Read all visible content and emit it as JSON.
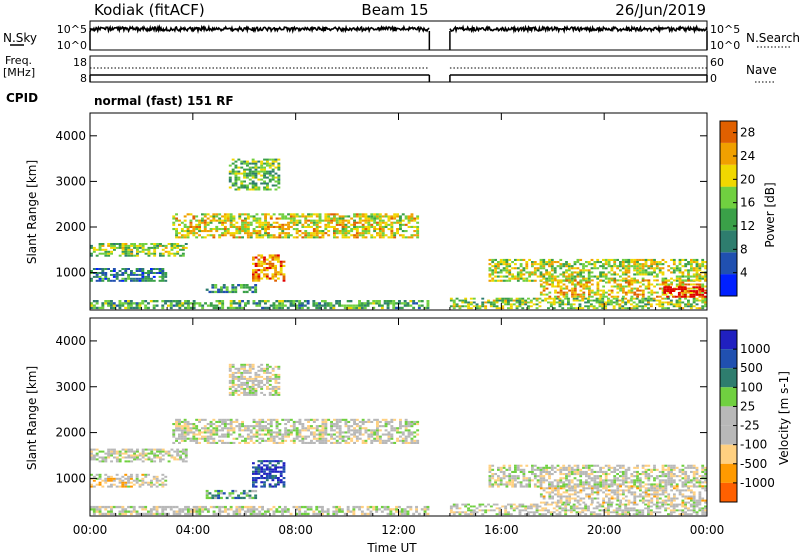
{
  "header": {
    "station": "Kodiak (fitACF)",
    "beam": "Beam 15",
    "date": "26/Jun/2019"
  },
  "nsky_panel": {
    "left_label": "N.Sky",
    "left_ticks": [
      "10^5",
      "10^0"
    ],
    "right_label": "N.Search",
    "right_ticks": [
      "10^5",
      "10^0"
    ]
  },
  "freq_panel": {
    "left_label_1": "Freq.",
    "left_label_2": "[MHz]",
    "left_ticks": [
      "18",
      "8"
    ],
    "right_label": "Nave",
    "right_ticks": [
      "60",
      "0"
    ]
  },
  "cpid_panel": {
    "label": "CPID",
    "program": "normal (fast) 151 RF"
  },
  "colors": {
    "power_scale": [
      "#0020ff",
      "#2050b0",
      "#2e7d6e",
      "#3aa048",
      "#70d040",
      "#f0d800",
      "#f0a000",
      "#e06000",
      "#e00000",
      "#e00000"
    ],
    "velocity_scale": [
      "#e00000",
      "#ff6000",
      "#ff9a00",
      "#ffd080",
      "#b8b8b8",
      "#b8b8b8",
      "#70d040",
      "#2e7d6e",
      "#2050b0",
      "#2020c0"
    ],
    "gap_background": "#ffffff"
  },
  "chart_data": [
    {
      "type": "heatmap",
      "title": "",
      "xlabel": "",
      "ylabel": "Slant Range [km]",
      "xlim_hours": [
        0,
        24
      ],
      "ylim": [
        180,
        4500
      ],
      "x_ticks": [
        "00:00",
        "04:00",
        "08:00",
        "12:00",
        "16:00",
        "20:00",
        "00:00"
      ],
      "y_ticks": [
        1000,
        2000,
        3000,
        4000
      ],
      "colorbar": {
        "label": "Power [dB]",
        "ticks": [
          4,
          8,
          12,
          16,
          20,
          24,
          28
        ],
        "range": [
          0,
          30
        ]
      },
      "data_gap_hours": [
        13.2,
        14.0
      ],
      "echo_regions": [
        {
          "t_start": 0.0,
          "t_end": 13.2,
          "range_low": 200,
          "range_high": 400,
          "level": 0.35
        },
        {
          "t_start": 0.0,
          "t_end": 3.8,
          "range_low": 1350,
          "range_high": 1650,
          "level": 0.45
        },
        {
          "t_start": 0.0,
          "t_end": 3.0,
          "range_low": 800,
          "range_high": 1100,
          "level": 0.25
        },
        {
          "t_start": 3.2,
          "t_end": 12.8,
          "range_low": 1750,
          "range_high": 2300,
          "level": 0.55
        },
        {
          "t_start": 5.4,
          "t_end": 7.4,
          "range_low": 2800,
          "range_high": 3500,
          "level": 0.4
        },
        {
          "t_start": 6.3,
          "t_end": 7.6,
          "range_low": 800,
          "range_high": 1400,
          "level": 0.7
        },
        {
          "t_start": 4.5,
          "t_end": 6.5,
          "range_low": 550,
          "range_high": 750,
          "level": 0.3
        },
        {
          "t_start": 14.0,
          "t_end": 24.0,
          "range_low": 200,
          "range_high": 450,
          "level": 0.45
        },
        {
          "t_start": 15.5,
          "t_end": 24.0,
          "range_low": 800,
          "range_high": 1300,
          "level": 0.5
        },
        {
          "t_start": 17.5,
          "t_end": 24.0,
          "range_low": 450,
          "range_high": 850,
          "level": 0.6
        },
        {
          "t_start": 22.3,
          "t_end": 24.0,
          "range_low": 450,
          "range_high": 700,
          "level": 0.95
        }
      ]
    },
    {
      "type": "heatmap",
      "title": "",
      "xlabel": "Time UT",
      "ylabel": "Slant Range [km]",
      "xlim_hours": [
        0,
        24
      ],
      "ylim": [
        180,
        4500
      ],
      "x_ticks": [
        "00:00",
        "04:00",
        "08:00",
        "12:00",
        "16:00",
        "20:00",
        "00:00"
      ],
      "y_ticks": [
        1000,
        2000,
        3000,
        4000
      ],
      "colorbar": {
        "label": "Velocity [m s-1]",
        "ticks": [
          "1000",
          "500",
          "100",
          "25",
          "-25",
          "-100",
          "-500",
          "-1000"
        ]
      },
      "data_gap_hours": [
        13.2,
        14.0
      ],
      "echo_regions": [
        {
          "t_start": 0.0,
          "t_end": 13.2,
          "range_low": 200,
          "range_high": 400,
          "level": 0.5
        },
        {
          "t_start": 0.0,
          "t_end": 3.8,
          "range_low": 1350,
          "range_high": 1650,
          "level": 0.5
        },
        {
          "t_start": 0.0,
          "t_end": 3.0,
          "range_low": 800,
          "range_high": 1100,
          "level": 0.45
        },
        {
          "t_start": 3.2,
          "t_end": 12.8,
          "range_low": 1750,
          "range_high": 2300,
          "level": 0.5
        },
        {
          "t_start": 5.4,
          "t_end": 7.4,
          "range_low": 2800,
          "range_high": 3500,
          "level": 0.5
        },
        {
          "t_start": 6.3,
          "t_end": 7.6,
          "range_low": 800,
          "range_high": 1400,
          "level": 0.9
        },
        {
          "t_start": 4.5,
          "t_end": 6.5,
          "range_low": 550,
          "range_high": 750,
          "level": 0.7
        },
        {
          "t_start": 14.0,
          "t_end": 24.0,
          "range_low": 200,
          "range_high": 450,
          "level": 0.5
        },
        {
          "t_start": 15.5,
          "t_end": 24.0,
          "range_low": 800,
          "range_high": 1300,
          "level": 0.5
        },
        {
          "t_start": 17.5,
          "t_end": 24.0,
          "range_low": 450,
          "range_high": 850,
          "level": 0.45
        }
      ]
    }
  ]
}
